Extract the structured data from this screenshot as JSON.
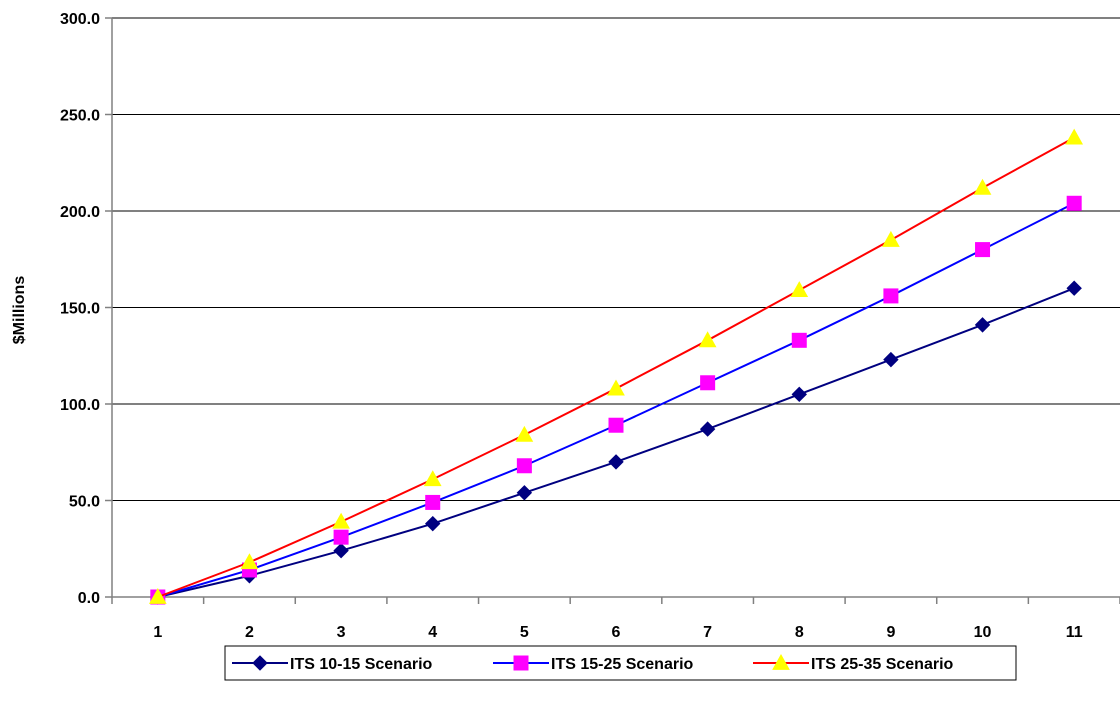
{
  "chart_data": {
    "type": "line",
    "title": "",
    "xlabel": "",
    "ylabel": "$Millions",
    "categories": [
      "1",
      "2",
      "3",
      "4",
      "5",
      "6",
      "7",
      "8",
      "9",
      "10",
      "11"
    ],
    "ylim": [
      0,
      300
    ],
    "yticks": [
      "0.0",
      "50.0",
      "100.0",
      "150.0",
      "200.0",
      "250.0",
      "300.0"
    ],
    "ytick_values": [
      0,
      50,
      100,
      150,
      200,
      250,
      300
    ],
    "grid": "horizontal",
    "legend": "bottom",
    "series": [
      {
        "name": "ITS 10-15 Scenario",
        "values": [
          0,
          11,
          24,
          38,
          54,
          70,
          87,
          105,
          123,
          141,
          160
        ],
        "line_color": "#000080",
        "marker_color": "#000080",
        "marker": "diamond"
      },
      {
        "name": "ITS 15-25 Scenario",
        "values": [
          0,
          14,
          31,
          49,
          68,
          89,
          111,
          133,
          156,
          180,
          204
        ],
        "line_color": "#0000FF",
        "marker_color": "#FF00FF",
        "marker": "square"
      },
      {
        "name": "ITS 25-35 Scenario",
        "values": [
          0,
          18,
          39,
          61,
          84,
          108,
          133,
          159,
          185,
          212,
          238
        ],
        "line_color": "#FF0000",
        "marker_color": "#FFFF00",
        "marker": "triangle"
      }
    ]
  }
}
